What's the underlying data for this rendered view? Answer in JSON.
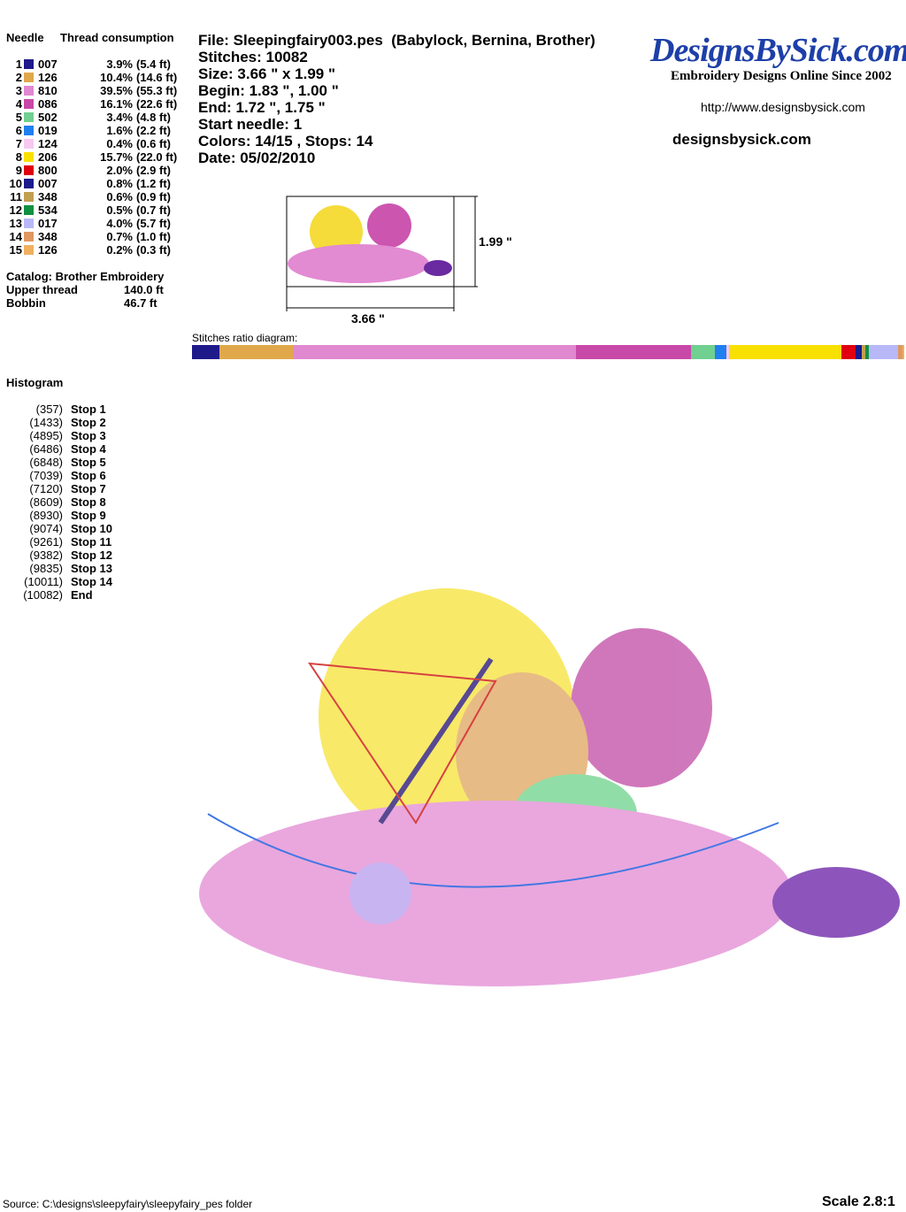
{
  "needle_table": {
    "header": {
      "needle": "Needle",
      "consumption": "Thread consumption"
    },
    "rows": [
      {
        "needle": "1",
        "color": "#1f1a8a",
        "code": "007",
        "percent": 3.9,
        "percent_label": "3.9%",
        "length": "(5.4 ft)"
      },
      {
        "needle": "2",
        "color": "#e0a84a",
        "code": "126",
        "percent": 10.4,
        "percent_label": "10.4%",
        "length": "(14.6 ft)"
      },
      {
        "needle": "3",
        "color": "#e088d0",
        "code": "810",
        "percent": 39.5,
        "percent_label": "39.5%",
        "length": "(55.3 ft)"
      },
      {
        "needle": "4",
        "color": "#c848a8",
        "code": "086",
        "percent": 16.1,
        "percent_label": "16.1%",
        "length": "(22.6 ft)"
      },
      {
        "needle": "5",
        "color": "#70d090",
        "code": "502",
        "percent": 3.4,
        "percent_label": "3.4%",
        "length": "(4.8 ft)"
      },
      {
        "needle": "6",
        "color": "#2080f0",
        "code": "019",
        "percent": 1.6,
        "percent_label": "1.6%",
        "length": "(2.2 ft)"
      },
      {
        "needle": "7",
        "color": "#f8c8f0",
        "code": "124",
        "percent": 0.4,
        "percent_label": "0.4%",
        "length": "(0.6 ft)"
      },
      {
        "needle": "8",
        "color": "#f8e000",
        "code": "206",
        "percent": 15.7,
        "percent_label": "15.7%",
        "length": "(22.0 ft)"
      },
      {
        "needle": "9",
        "color": "#e00010",
        "code": "800",
        "percent": 2.0,
        "percent_label": "2.0%",
        "length": "(2.9 ft)"
      },
      {
        "needle": "10",
        "color": "#1a1a8c",
        "code": "007",
        "percent": 0.8,
        "percent_label": "0.8%",
        "length": "(1.2 ft)"
      },
      {
        "needle": "11",
        "color": "#c0a050",
        "code": "348",
        "percent": 0.6,
        "percent_label": "0.6%",
        "length": "(0.9 ft)"
      },
      {
        "needle": "12",
        "color": "#109040",
        "code": "534",
        "percent": 0.5,
        "percent_label": "0.5%",
        "length": "(0.7 ft)"
      },
      {
        "needle": "13",
        "color": "#b8b8f8",
        "code": "017",
        "percent": 4.0,
        "percent_label": "4.0%",
        "length": "(5.7 ft)"
      },
      {
        "needle": "14",
        "color": "#e09860",
        "code": "348",
        "percent": 0.7,
        "percent_label": "0.7%",
        "length": "(1.0 ft)"
      },
      {
        "needle": "15",
        "color": "#f0b060",
        "code": "126",
        "percent": 0.2,
        "percent_label": "0.2%",
        "length": "(0.3 ft)"
      }
    ]
  },
  "catalog": "Catalog: Brother Embroidery",
  "totals": [
    {
      "label": "Upper thread",
      "value": "140.0 ft"
    },
    {
      "label": "Bobbin",
      "value": "46.7 ft"
    }
  ],
  "file_info": [
    "File: Sleepingfairy003.pes  (Babylock, Bernina, Brother)",
    "Stitches: 10082",
    "Size: 3.66 \" x 1.99 \"",
    "Begin: 1.83 \", 1.00 \"",
    "End: 1.72 \", 1.75 \"",
    "Start needle: 1",
    "Colors: 14/15 , Stops: 14",
    "Date: 05/02/2010"
  ],
  "logo": {
    "name": "DesignsBySick.com",
    "tagline": "Embroidery Designs Online Since 2002",
    "url": "http://www.designsbysick.com",
    "site": "designsbysick.com"
  },
  "dimensions": {
    "height": "1.99 \"",
    "width": "3.66 \""
  },
  "ratio_title": "Stitches ratio diagram:",
  "histogram": {
    "title": "Histogram",
    "rows": [
      {
        "count": "(357)",
        "label": "Stop 1"
      },
      {
        "count": "(1433)",
        "label": "Stop 2"
      },
      {
        "count": "(4895)",
        "label": "Stop 3"
      },
      {
        "count": "(6486)",
        "label": "Stop 4"
      },
      {
        "count": "(6848)",
        "label": "Stop 5"
      },
      {
        "count": "(7039)",
        "label": "Stop 6"
      },
      {
        "count": "(7120)",
        "label": "Stop 7"
      },
      {
        "count": "(8609)",
        "label": "Stop 8"
      },
      {
        "count": "(8930)",
        "label": "Stop 9"
      },
      {
        "count": "(9074)",
        "label": "Stop 10"
      },
      {
        "count": "(9261)",
        "label": "Stop 11"
      },
      {
        "count": "(9382)",
        "label": "Stop 12"
      },
      {
        "count": "(9835)",
        "label": "Stop 13"
      },
      {
        "count": "(10011)",
        "label": "Stop 14"
      },
      {
        "count": "(10082)",
        "label": "End"
      }
    ]
  },
  "footer": {
    "source": "Source: C:\\designs\\sleepyfairy\\sleepyfairy_pes folder",
    "scale": "Scale 2.8:1"
  }
}
